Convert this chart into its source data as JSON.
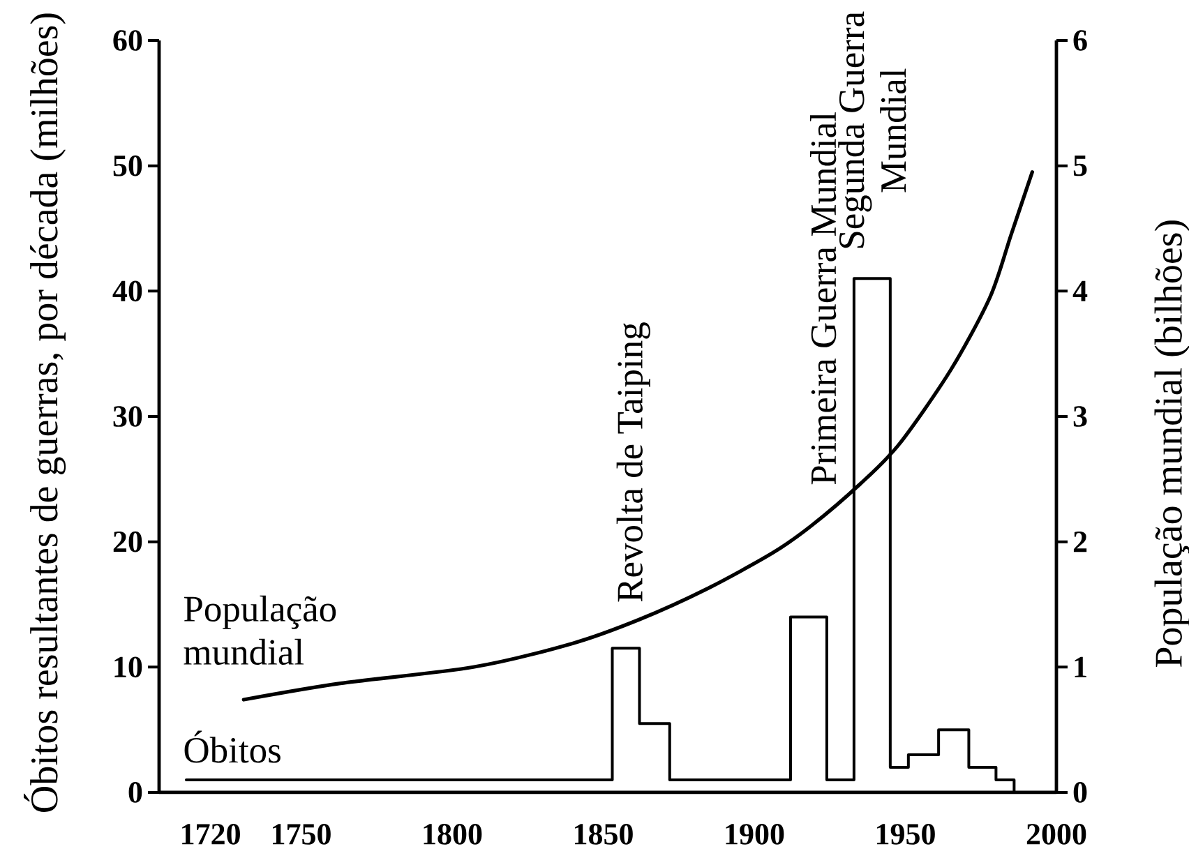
{
  "chart_data": {
    "type": "step",
    "ylabel": "Óbitos resultantes de guerras, por década (milhões)",
    "y2label": "População mundial (bilhões)",
    "xlim": [
      1703,
      2000
    ],
    "xticks": [
      1720,
      1750,
      1800,
      1850,
      1900,
      1950,
      2000
    ],
    "ylim": [
      0,
      60
    ],
    "yticks": [
      0,
      10,
      20,
      30,
      40,
      50,
      60
    ],
    "y2lim": [
      0,
      6
    ],
    "y2ticks": [
      0,
      1,
      2,
      3,
      4,
      5,
      6
    ],
    "series": [
      {
        "name": "Óbitos",
        "color": "#000000",
        "x": [
          1712,
          1853,
          1862,
          1872,
          1912,
          1924,
          1933,
          1945,
          1951,
          1961,
          1971,
          1980,
          1986
        ],
        "values": [
          1,
          11.5,
          5.5,
          1,
          14,
          1,
          41,
          2,
          3,
          5,
          2,
          1,
          0
        ]
      },
      {
        "name": "População mundial",
        "type": "line",
        "axis": "y2",
        "color": "#000000",
        "x": [
          1731,
          1763,
          1807,
          1840,
          1862,
          1884,
          1906,
          1919,
          1935,
          1948,
          1965,
          1978,
          1985,
          1992
        ],
        "values": [
          0.74,
          0.87,
          1.0,
          1.19,
          1.38,
          1.62,
          1.91,
          2.13,
          2.46,
          2.78,
          3.37,
          3.95,
          4.45,
          4.95
        ]
      }
    ],
    "annotations": [
      "Revolta de Taiping",
      "Primeira Guerra Mundial",
      {
        "text": "Segunda Guerra Mundial",
        "x": 1939,
        "y": 41
      }
    ]
  }
}
